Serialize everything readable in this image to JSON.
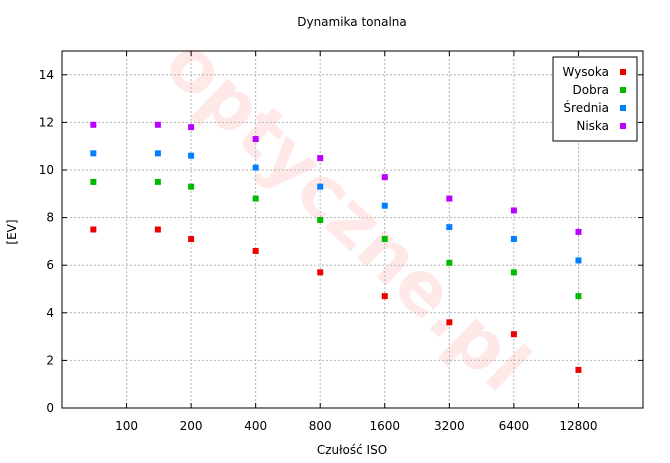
{
  "chart_data": {
    "type": "scatter",
    "title": "Dynamika tonalna",
    "xlabel": "Czułość ISO",
    "ylabel": "[EV]",
    "x_scale": "log2",
    "categories": [
      "100",
      "200",
      "400",
      "800",
      "1600",
      "3200",
      "6400",
      "12800"
    ],
    "xlim": [
      50,
      25600
    ],
    "ylim": [
      0,
      15
    ],
    "yticks": [
      0,
      2,
      4,
      6,
      8,
      10,
      12,
      14
    ],
    "grid": true,
    "legend_position": "top-right",
    "series": [
      {
        "name": "Wysoka",
        "color": "#ee0000",
        "x": [
          70,
          140,
          200,
          400,
          800,
          1600,
          3200,
          6400,
          12800
        ],
        "y": [
          7.5,
          7.5,
          7.1,
          6.6,
          5.7,
          4.7,
          3.6,
          3.1,
          1.6
        ]
      },
      {
        "name": "Dobra",
        "color": "#00bb00",
        "x": [
          70,
          140,
          200,
          400,
          800,
          1600,
          3200,
          6400,
          12800
        ],
        "y": [
          9.5,
          9.5,
          9.3,
          8.8,
          7.9,
          7.1,
          6.1,
          5.7,
          4.7
        ]
      },
      {
        "name": "Średnia",
        "color": "#0080ff",
        "x": [
          70,
          140,
          200,
          400,
          800,
          1600,
          3200,
          6400,
          12800
        ],
        "y": [
          10.7,
          10.7,
          10.6,
          10.1,
          9.3,
          8.5,
          7.6,
          7.1,
          6.2
        ]
      },
      {
        "name": "Niska",
        "color": "#bb00ff",
        "x": [
          70,
          140,
          200,
          400,
          800,
          1600,
          3200,
          6400,
          12800
        ],
        "y": [
          11.9,
          11.9,
          11.8,
          11.3,
          10.5,
          9.7,
          8.8,
          8.3,
          7.4
        ]
      }
    ]
  },
  "watermark": "optyczne.pl"
}
